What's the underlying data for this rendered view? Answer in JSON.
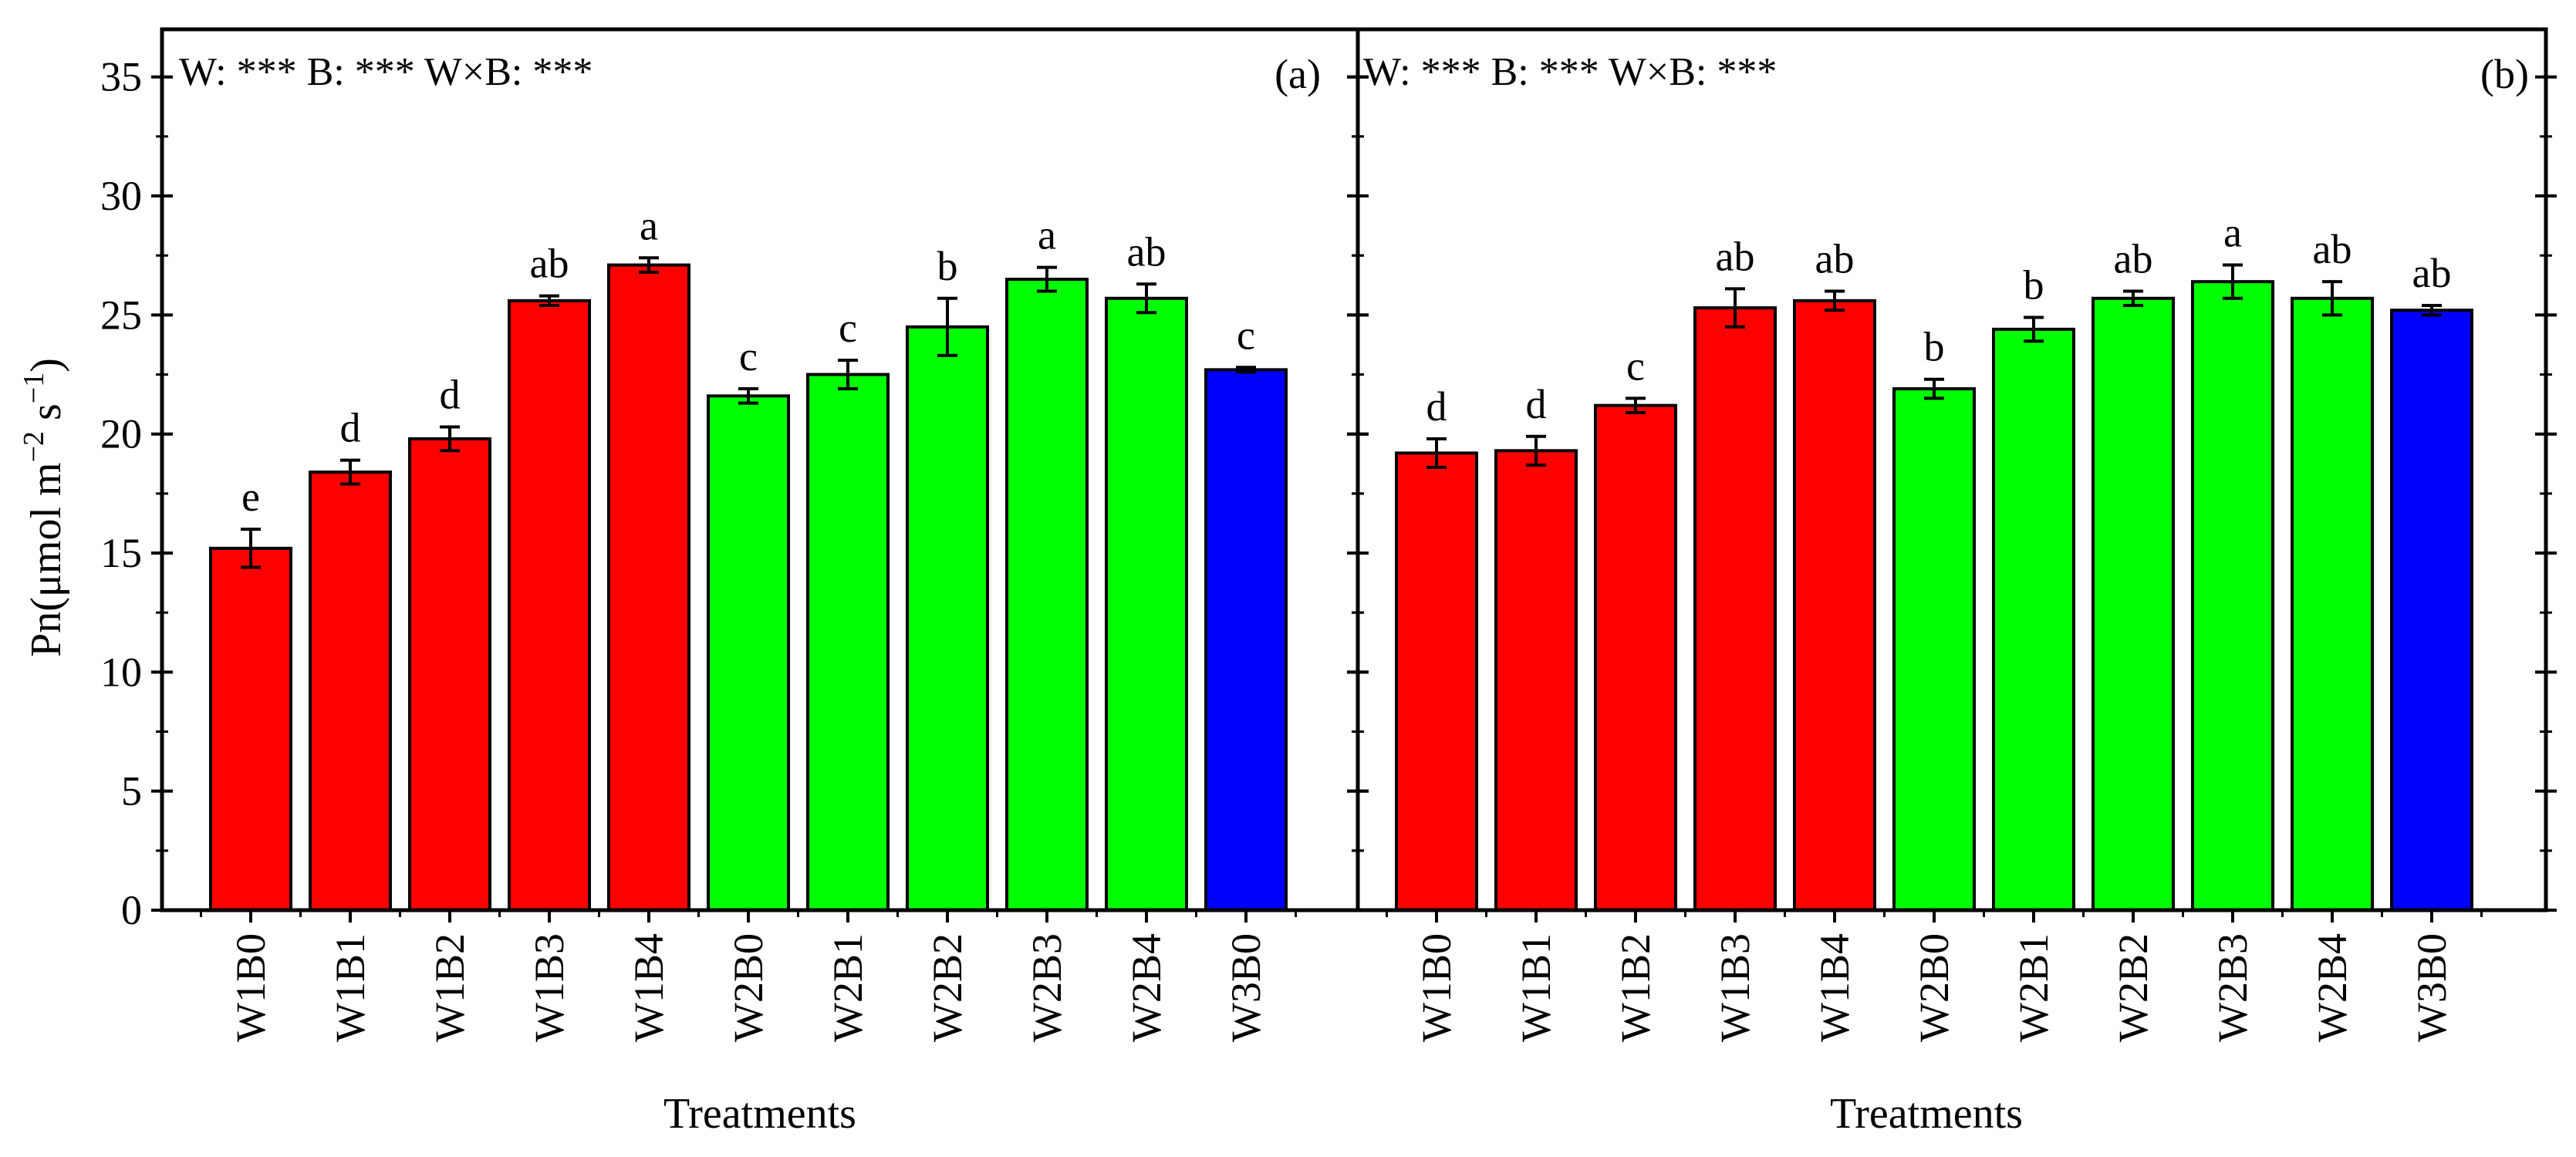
{
  "figure": {
    "ylabel": "Pn(μmol m−2 s−1)",
    "ylabel_parts": {
      "prefix": "Pn(μmol m",
      "exp1": "−2",
      "middle": " s",
      "exp2": "−1",
      "suffix": ")"
    },
    "colors": {
      "W1": "#ff0000",
      "W2": "#00ff00",
      "W3": "#0000ff",
      "axis": "#000000"
    }
  },
  "chart_data": [
    {
      "type": "bar",
      "panel": "(a)",
      "title": "",
      "stats_text": "W: ***  B: ***  W×B: ***",
      "xlabel": "Treatments",
      "ylabel": "Pn(μmol m−2 s−1)",
      "ylim": [
        0,
        37
      ],
      "yticks": [
        0,
        5,
        10,
        15,
        20,
        25,
        30,
        35
      ],
      "categories": [
        "W1B0",
        "W1B1",
        "W1B2",
        "W1B3",
        "W1B4",
        "W2B0",
        "W2B1",
        "W2B2",
        "W2B3",
        "W2B4",
        "W3B0"
      ],
      "values": [
        15.2,
        18.4,
        19.8,
        25.6,
        27.1,
        21.6,
        22.5,
        24.5,
        26.5,
        25.7,
        22.7
      ],
      "errors": [
        0.8,
        0.5,
        0.5,
        0.2,
        0.3,
        0.3,
        0.6,
        1.2,
        0.5,
        0.6,
        0.1
      ],
      "letters": [
        "e",
        "d",
        "d",
        "ab",
        "a",
        "c",
        "c",
        "b",
        "a",
        "ab",
        "c"
      ],
      "groups": [
        "W1",
        "W1",
        "W1",
        "W1",
        "W1",
        "W2",
        "W2",
        "W2",
        "W2",
        "W2",
        "W3"
      ]
    },
    {
      "type": "bar",
      "panel": "(b)",
      "title": "",
      "stats_text": "W: ***  B: ***  W×B: ***",
      "xlabel": "Treatments",
      "ylabel": "Pn(μmol m−2 s−1)",
      "ylim": [
        0,
        37
      ],
      "yticks": [
        0,
        5,
        10,
        15,
        20,
        25,
        30,
        35
      ],
      "categories": [
        "W1B0",
        "W1B1",
        "W1B2",
        "W1B3",
        "W1B4",
        "W2B0",
        "W2B1",
        "W2B2",
        "W2B3",
        "W2B4",
        "W3B0"
      ],
      "values": [
        19.2,
        19.3,
        21.2,
        25.3,
        25.6,
        21.9,
        24.4,
        25.7,
        26.4,
        25.7,
        25.2
      ],
      "errors": [
        0.6,
        0.6,
        0.3,
        0.8,
        0.4,
        0.4,
        0.5,
        0.3,
        0.7,
        0.7,
        0.2
      ],
      "letters": [
        "d",
        "d",
        "c",
        "ab",
        "ab",
        "b",
        "b",
        "ab",
        "a",
        "ab",
        "ab"
      ],
      "groups": [
        "W1",
        "W1",
        "W1",
        "W1",
        "W1",
        "W2",
        "W2",
        "W2",
        "W2",
        "W2",
        "W3"
      ]
    }
  ]
}
